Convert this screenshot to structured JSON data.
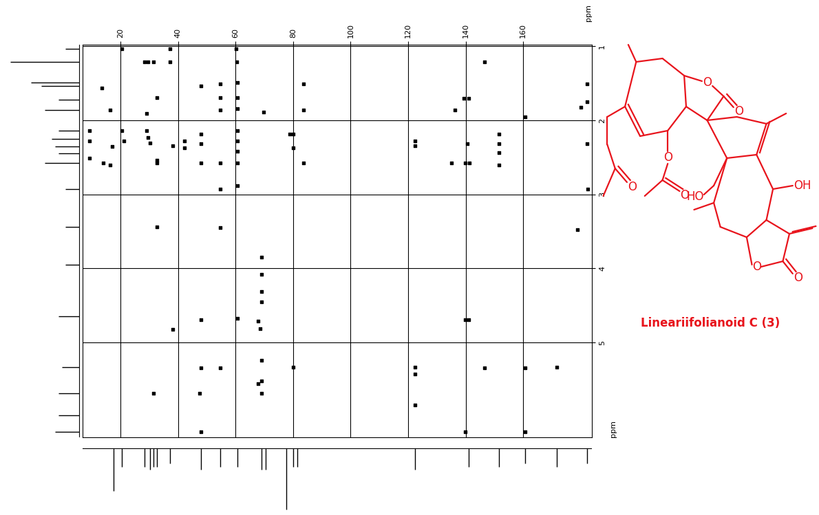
{
  "chart_data": {
    "type": "scatter",
    "xlabel": "ppm",
    "ylabel": "ppm",
    "xlim": [
      6.8,
      184
    ],
    "ylim": [
      6.28,
      0.98
    ],
    "xticks": [
      20,
      40,
      60,
      80,
      100,
      120,
      140,
      160
    ],
    "yticks": [
      1,
      2,
      3,
      4,
      5
    ],
    "grid": true,
    "color": "#000000",
    "marker": "s",
    "x": [
      20.5,
      37.2,
      60.2,
      28.4,
      29.6,
      31.3,
      37.2,
      60.5,
      146.5,
      13.5,
      48.0,
      54.7,
      60.7,
      83.5,
      182.2,
      32.7,
      54.7,
      60.7,
      139.3,
      141.0,
      182.2,
      16.4,
      28.9,
      54.7,
      60.7,
      69.8,
      83.5,
      136.2,
      180.0,
      160.8,
      9.2,
      9.2,
      9.2,
      17.1,
      20.5,
      21.2,
      28.9,
      29.6,
      30.3,
      32.7,
      38.0,
      42.3,
      42.3,
      48.0,
      48.0,
      60.7,
      60.7,
      60.7,
      78.7,
      79.9,
      79.9,
      122.3,
      122.3,
      140.5,
      151.7,
      151.7,
      151.7,
      182.2,
      14.0,
      16.4,
      32.7,
      48.0,
      54.7,
      60.7,
      83.5,
      135.0,
      139.8,
      141.4,
      151.7,
      54.7,
      60.7,
      182.4,
      32.7,
      54.7,
      178.8,
      69.1,
      69.1,
      69.1,
      69.1,
      67.9,
      68.6,
      48.0,
      60.7,
      139.8,
      141.0,
      38.0,
      48.0,
      54.7,
      69.1,
      79.9,
      122.3,
      122.3,
      146.5,
      160.8,
      171.6,
      69.1,
      31.3,
      47.5,
      69.1,
      67.9,
      122.3,
      48.0,
      139.8,
      160.8
    ],
    "y": [
      1.03,
      1.03,
      1.03,
      1.21,
      1.21,
      1.21,
      1.21,
      1.21,
      1.21,
      1.56,
      1.54,
      1.51,
      1.49,
      1.51,
      1.51,
      1.69,
      1.69,
      1.69,
      1.7,
      1.7,
      1.75,
      1.86,
      1.91,
      1.86,
      1.84,
      1.89,
      1.86,
      1.86,
      1.82,
      1.95,
      2.14,
      2.28,
      2.51,
      2.35,
      2.14,
      2.28,
      2.14,
      2.23,
      2.31,
      2.54,
      2.34,
      2.28,
      2.37,
      2.19,
      2.32,
      2.14,
      2.28,
      2.42,
      2.19,
      2.19,
      2.37,
      2.28,
      2.34,
      2.32,
      2.19,
      2.32,
      2.44,
      2.32,
      2.58,
      2.6,
      2.58,
      2.58,
      2.58,
      2.58,
      2.58,
      2.58,
      2.58,
      2.58,
      2.6,
      2.93,
      2.88,
      2.93,
      3.44,
      3.45,
      3.48,
      3.85,
      4.08,
      4.31,
      4.45,
      4.71,
      4.81,
      4.69,
      4.67,
      4.69,
      4.69,
      4.82,
      5.34,
      5.34,
      5.24,
      5.33,
      5.33,
      5.43,
      5.34,
      5.34,
      5.33,
      5.52,
      5.69,
      5.69,
      5.69,
      5.56,
      5.84,
      6.21,
      6.21,
      6.21
    ],
    "x_projection": {
      "x": [
        17.6,
        20.5,
        28.4,
        30.3,
        31.3,
        32.7,
        37.2,
        48.0,
        54.7,
        60.7,
        69.1,
        70.5,
        77.5,
        79.9,
        81.5,
        122.3,
        141.0,
        151.7,
        160.8,
        171.6,
        182.2
      ],
      "intensity": [
        0.7,
        0.3,
        0.3,
        0.35,
        0.3,
        0.3,
        0.25,
        0.35,
        0.3,
        0.3,
        0.35,
        0.35,
        1.0,
        0.3,
        0.3,
        0.35,
        0.3,
        0.3,
        0.25,
        0.3,
        0.25
      ]
    },
    "y_projection": {
      "y": [
        1.03,
        1.21,
        1.49,
        1.54,
        1.72,
        1.86,
        2.14,
        2.25,
        2.35,
        2.45,
        2.58,
        2.93,
        3.44,
        3.95,
        4.65,
        5.33,
        5.69,
        5.98,
        6.21
      ],
      "intensity": [
        0.2,
        1.0,
        0.7,
        0.55,
        0.3,
        0.5,
        0.3,
        0.4,
        0.35,
        0.3,
        0.5,
        0.2,
        0.2,
        0.2,
        0.3,
        0.25,
        0.3,
        0.3,
        0.35
      ]
    }
  },
  "structure": {
    "name": "Lineariifolianoid C (3)",
    "atom_labels": [
      "O",
      "O",
      "O",
      "O",
      "O",
      "HO",
      "OH",
      "O",
      "O"
    ]
  }
}
